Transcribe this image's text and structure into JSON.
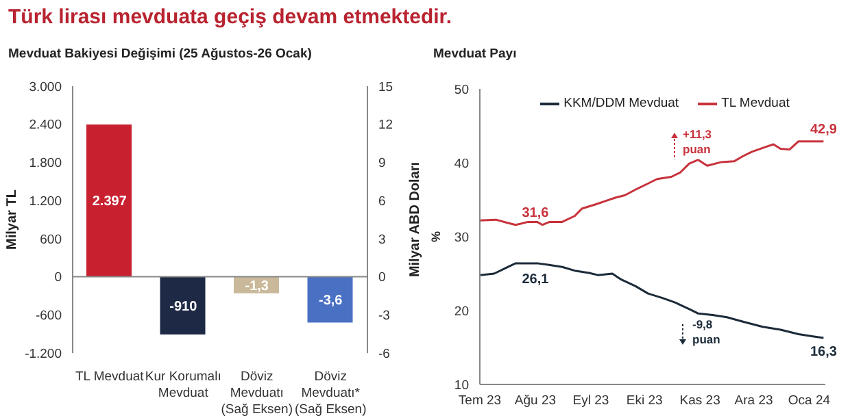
{
  "chart_data": [
    {
      "type": "bar",
      "title": "Türk lirası mevduata geçiş devam etmektedir.",
      "subtitle": "Mevduat Bakiyesi Değişimi (25 Ağustos-26 Ocak)",
      "ylabel": "Milyar TL",
      "y2label": "Milyar ABD Doları",
      "categories": [
        "TL Mevduat",
        "Kur Korumalı Mevduat",
        "Döviz Mevduatı (Sağ Eksen)",
        "Döviz Mevduatı* (Sağ Eksen)"
      ],
      "series": [
        {
          "colors": [
            "#c8202f",
            "#1e2a45",
            null,
            null
          ],
          "values": [
            2397,
            -910,
            null,
            null
          ],
          "value_labels": [
            "2.397",
            "-910",
            null,
            null
          ]
        },
        {
          "axis": "y2",
          "colors": [
            null,
            null,
            "#c9b99a",
            "#4a70c4"
          ],
          "values": [
            null,
            null,
            -1.3,
            -3.6
          ],
          "value_labels": [
            null,
            null,
            "-1,3",
            "-3,6"
          ]
        }
      ],
      "ylim": [
        -1200,
        3000
      ],
      "yticks": [
        {
          "value": -1200,
          "label": "-1.200"
        },
        -600,
        0,
        600,
        {
          "value": 1200,
          "label": "1.200"
        },
        {
          "value": 1800,
          "label": "1.800"
        },
        {
          "value": 2400,
          "label": "2.400"
        },
        {
          "value": 3000,
          "label": "3.000"
        }
      ],
      "y2lim": [
        -6,
        15
      ],
      "y2ticks": [
        -6,
        -3,
        0,
        3,
        6,
        9,
        12,
        15
      ]
    },
    {
      "type": "line",
      "title": "Mevduat Payı",
      "ylabel": "%",
      "legend": "top",
      "grid": false,
      "line_style": "solid",
      "marker": "none",
      "xlim": [
        "2023-07-01",
        "2024-01-10"
      ],
      "xticks": [
        {
          "value": "2023-07-01",
          "label": "Tem 23"
        },
        {
          "value": "2023-08-01",
          "label": "Ağu 23"
        },
        {
          "value": "2023-09-01",
          "label": "Eyl 23"
        },
        {
          "value": "2023-10-01",
          "label": "Eki 23"
        },
        {
          "value": "2023-11-01",
          "label": "Kas 23"
        },
        {
          "value": "2023-12-01",
          "label": "Ara 23"
        },
        {
          "value": "2024-01-01",
          "label": "Oca 24"
        }
      ],
      "ylim": [
        10,
        50
      ],
      "yticks": [
        10,
        20,
        30,
        40,
        50
      ],
      "series": [
        {
          "name": "KKM/DDM Mevduat",
          "color": "#1c2b3a",
          "x": [
            "2023-07-01",
            "2023-07-09",
            "2023-07-15",
            "2023-07-21",
            "2023-08-02",
            "2023-08-08",
            "2023-08-16",
            "2023-08-23",
            "2023-08-31",
            "2023-09-05",
            "2023-09-13",
            "2023-09-18",
            "2023-09-26",
            "2023-10-03",
            "2023-10-11",
            "2023-10-18",
            "2023-10-26",
            "2023-10-31",
            "2023-11-08",
            "2023-11-16",
            "2023-11-25",
            "2023-12-06",
            "2023-12-16",
            "2023-12-26",
            "2024-01-03",
            "2024-01-09"
          ],
          "values": [
            24.8,
            25.0,
            25.7,
            26.4,
            26.4,
            26.2,
            25.9,
            25.4,
            25.1,
            24.8,
            25.0,
            24.2,
            23.3,
            22.3,
            21.7,
            21.1,
            20.2,
            19.6,
            19.4,
            19.1,
            18.5,
            17.8,
            17.4,
            16.8,
            16.5,
            16.3
          ]
        },
        {
          "name": "TL Mevduat",
          "color": "#c8323c",
          "x": [
            "2023-07-01",
            "2023-07-10",
            "2023-07-16",
            "2023-07-21",
            "2023-07-28",
            "2023-08-02",
            "2023-08-05",
            "2023-08-09",
            "2023-08-16",
            "2023-08-23",
            "2023-08-27",
            "2023-09-04",
            "2023-09-10",
            "2023-09-15",
            "2023-09-20",
            "2023-09-27",
            "2023-10-03",
            "2023-10-08",
            "2023-10-16",
            "2023-10-21",
            "2023-10-26",
            "2023-10-31",
            "2023-11-05",
            "2023-11-13",
            "2023-11-20",
            "2023-11-25",
            "2023-11-30",
            "2023-12-07",
            "2023-12-12",
            "2023-12-16",
            "2023-12-21",
            "2023-12-26",
            "2024-01-01",
            "2024-01-05",
            "2024-01-09"
          ],
          "values": [
            32.2,
            32.3,
            31.9,
            31.6,
            32.0,
            32.0,
            31.6,
            32.0,
            32.0,
            32.8,
            33.8,
            34.4,
            34.9,
            35.3,
            35.6,
            36.5,
            37.2,
            37.8,
            38.1,
            38.7,
            39.9,
            40.4,
            39.6,
            40.1,
            40.2,
            40.9,
            41.5,
            42.1,
            42.5,
            41.9,
            41.8,
            42.9,
            42.9,
            42.9,
            42.9
          ]
        }
      ],
      "annotations": [
        {
          "text": "31,6",
          "x": "2023-08-01",
          "y": 31.6
        },
        {
          "text": "26,1",
          "x": "2023-08-01",
          "y": 26.1
        },
        {
          "text": "42,9",
          "x": "2024-01-09",
          "y": 42.9
        },
        {
          "text": "16,3",
          "x": "2024-01-09",
          "y": 16.3
        },
        "+11,3 puan",
        "-9,8 puan"
      ]
    }
  ]
}
